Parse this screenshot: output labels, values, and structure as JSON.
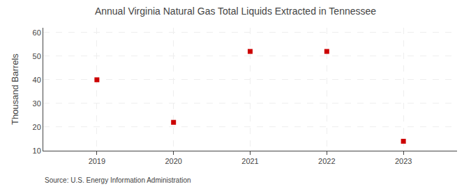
{
  "chart_data": {
    "type": "scatter",
    "title": "Annual Virginia Natural Gas Total Liquids Extracted in Tennessee",
    "ylabel": "Thousand Barrels",
    "annotations": [
      "Source: U.S. Energy Information Administration"
    ],
    "x": [
      2019,
      2020,
      2021,
      2022,
      2023
    ],
    "values": [
      40,
      22,
      52,
      52,
      14
    ],
    "xlim": [
      2018.3,
      2023.7
    ],
    "ylim": [
      10,
      62
    ],
    "xticks": [
      2019,
      2020,
      2021,
      2022,
      2023
    ],
    "yticks": [
      10,
      20,
      30,
      40,
      50,
      60
    ],
    "color": "#cc0000",
    "marker": "square",
    "grid": true
  }
}
